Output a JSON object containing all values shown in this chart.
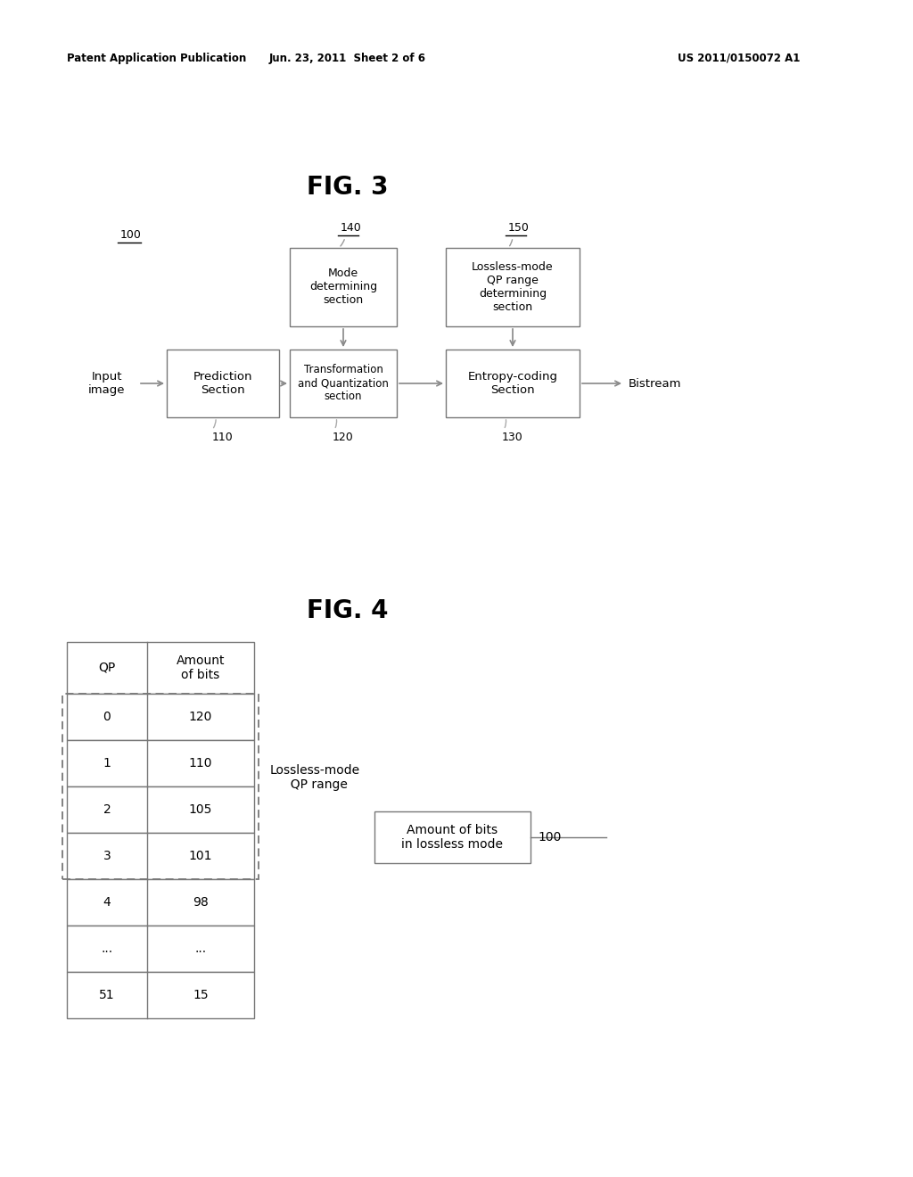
{
  "bg_color": "#ffffff",
  "header_left": "Patent Application Publication",
  "header_mid": "Jun. 23, 2011  Sheet 2 of 6",
  "header_right": "US 2011/0150072 A1",
  "fig3_title": "FIG. 3",
  "fig4_title": "FIG. 4",
  "fig3": {
    "label_100": "100",
    "label_110": "110",
    "label_120": "120",
    "label_130": "130",
    "label_140": "140",
    "label_150": "150",
    "box_prediction": "Prediction\nSection",
    "box_transform": "Transformation\nand Quantization\nsection",
    "box_entropy": "Entropy-coding\nSection",
    "box_mode": "Mode\ndetermining\nsection",
    "box_lossless": "Lossless-mode\nQP range\ndetermining\nsection",
    "text_input": "Input\nimage",
    "text_bistream": "Bistream"
  },
  "fig4": {
    "table_header": [
      "QP",
      "Amount\nof bits"
    ],
    "table_rows": [
      [
        "0",
        "120"
      ],
      [
        "1",
        "110"
      ],
      [
        "2",
        "105"
      ],
      [
        "3",
        "101"
      ],
      [
        "4",
        "98"
      ],
      [
        "...",
        "..."
      ],
      [
        "51",
        "15"
      ]
    ],
    "dashed_rows_count": 4,
    "label_lossless_range": "Lossless-mode\n  QP range",
    "box_amount_text": "Amount of bits\nin lossless mode",
    "box_amount_label": "100"
  }
}
